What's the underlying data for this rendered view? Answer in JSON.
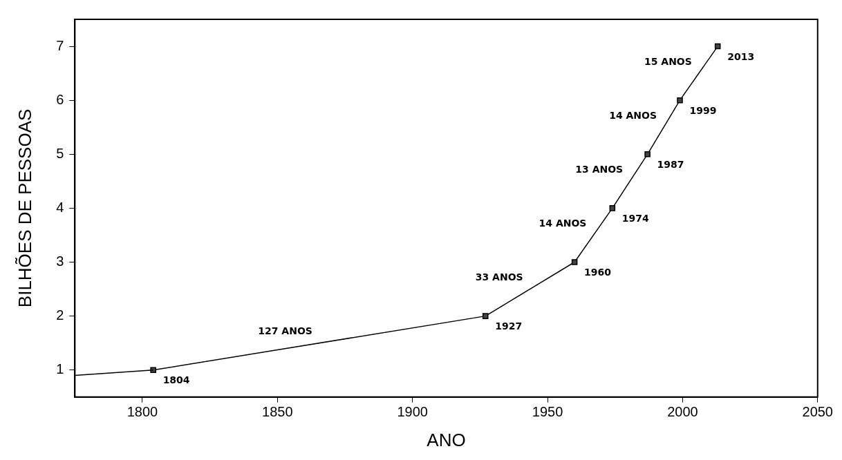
{
  "chart_data": {
    "type": "line",
    "xlabel": "ANO",
    "ylabel": "BILHÕES DE PESSOAS",
    "xlim": [
      1775,
      2050
    ],
    "xticks": [
      1800,
      1850,
      1900,
      1950,
      2000,
      2050
    ],
    "ylim": [
      0.5,
      7.5
    ],
    "yticks": [
      1,
      2,
      3,
      4,
      5,
      6,
      7
    ],
    "grid": false,
    "legend": false,
    "line_style": "solid",
    "series": [
      {
        "color": "#000000",
        "x": [
          1775,
          1804
        ],
        "values": [
          0.9,
          1
        ]
      },
      {
        "color": "#000000",
        "marker": "square",
        "x": [
          1804,
          1927,
          1960,
          1974,
          1987,
          1999,
          2013
        ],
        "values": [
          1,
          2,
          3,
          4,
          5,
          6,
          7
        ]
      }
    ],
    "annotations": [
      {
        "text": "1804",
        "x": 1804,
        "y": 1
      },
      {
        "text": "1927",
        "x": 1927,
        "y": 2
      },
      {
        "text": "1960",
        "x": 1960,
        "y": 3
      },
      {
        "text": "1974",
        "x": 1974,
        "y": 4
      },
      {
        "text": "1987",
        "x": 1987,
        "y": 5
      },
      {
        "text": "1999",
        "x": 1999,
        "y": 6
      },
      {
        "text": "2013",
        "x": 2013,
        "y": 7
      },
      {
        "text": "127 ANOS",
        "x": 1865.5,
        "y": 1.5
      },
      {
        "text": "33 ANOS",
        "x": 1943.5,
        "y": 2.5
      },
      {
        "text": "14 ANOS",
        "x": 1967,
        "y": 3.5
      },
      {
        "text": "13 ANOS",
        "x": 1980.5,
        "y": 4.5
      },
      {
        "text": "14 ANOS",
        "x": 1993,
        "y": 5.5
      },
      {
        "text": "15 ANOS",
        "x": 2006,
        "y": 6.5
      }
    ]
  }
}
